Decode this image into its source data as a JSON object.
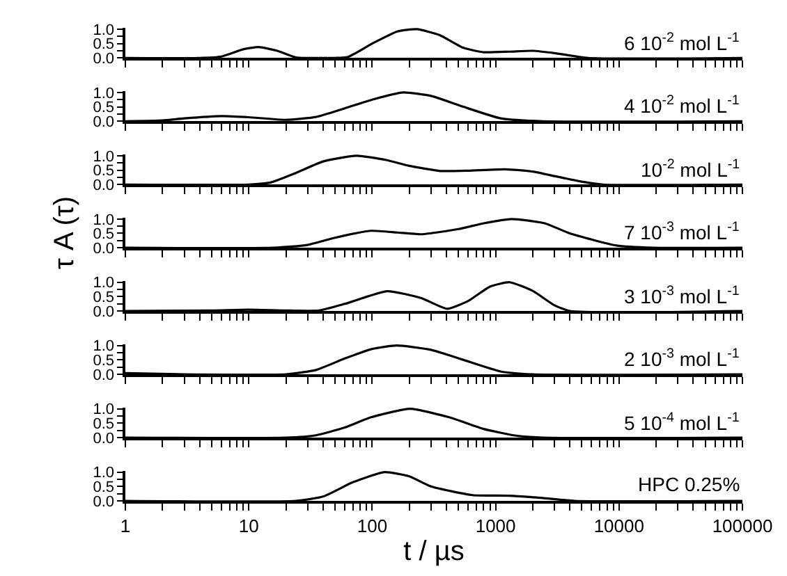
{
  "chart_data": [
    {
      "type": "line",
      "title": "6 10$^{-2}$ mol L$^{-1}$",
      "log": "x",
      "tick_labels": "y",
      "xlim": [
        1,
        100000
      ],
      "ylim": [
        0,
        1.05
      ],
      "yticks": [
        {
          "value": 0,
          "label": "0.0"
        },
        {
          "value": 0.25,
          "label": null
        },
        {
          "value": 0.5,
          "label": "0.5"
        },
        {
          "value": 0.75,
          "label": null
        },
        {
          "value": 1,
          "label": "1.0"
        }
      ],
      "xticks": [
        1,
        2,
        3,
        4,
        5,
        6,
        7,
        8,
        9,
        10,
        20,
        30,
        40,
        50,
        60,
        70,
        80,
        90,
        100,
        200,
        300,
        400,
        500,
        600,
        700,
        800,
        900,
        1000,
        2000,
        3000,
        4000,
        5000,
        6000,
        7000,
        8000,
        9000,
        10000,
        20000,
        30000,
        40000,
        50000,
        60000,
        70000,
        80000,
        90000,
        100000
      ],
      "series": [
        {
          "color": "#000000",
          "x": [
            1,
            4,
            6,
            9,
            12,
            17,
            24,
            40,
            63,
            100,
            160,
            230,
            350,
            550,
            800,
            1300,
            2000,
            3000,
            5600,
            100000
          ],
          "values": [
            0,
            0,
            0.05,
            0.3,
            0.38,
            0.25,
            0.02,
            0,
            0.03,
            0.5,
            0.92,
            1.0,
            0.8,
            0.35,
            0.2,
            0.22,
            0.25,
            0.17,
            0,
            0
          ]
        }
      ]
    },
    {
      "type": "line",
      "title": "4 10$^{-2}$ mol L$^{-1}$",
      "log": "x",
      "tick_labels": "y",
      "xlim": [
        1,
        100000
      ],
      "ylim": [
        0,
        1.05
      ],
      "yticks": [
        {
          "value": 0,
          "label": "0.0"
        },
        {
          "value": 0.25,
          "label": null
        },
        {
          "value": 0.5,
          "label": "0.5"
        },
        {
          "value": 0.75,
          "label": null
        },
        {
          "value": 1,
          "label": "1.0"
        }
      ],
      "xticks": [
        1,
        2,
        3,
        4,
        5,
        6,
        7,
        8,
        9,
        10,
        20,
        30,
        40,
        50,
        60,
        70,
        80,
        90,
        100,
        200,
        300,
        400,
        500,
        600,
        700,
        800,
        900,
        1000,
        2000,
        3000,
        4000,
        5000,
        6000,
        7000,
        8000,
        9000,
        10000,
        20000,
        30000,
        40000,
        50000,
        60000,
        70000,
        80000,
        90000,
        100000
      ],
      "series": [
        {
          "color": "#000000",
          "x": [
            1,
            2,
            3,
            6,
            10,
            20,
            35,
            60,
            100,
            178,
            300,
            550,
            1100,
            2400,
            100000
          ],
          "values": [
            0,
            0.03,
            0.1,
            0.18,
            0.14,
            0.05,
            0.15,
            0.45,
            0.75,
            1.0,
            0.88,
            0.5,
            0.1,
            0,
            0
          ]
        }
      ]
    },
    {
      "type": "line",
      "title": "10$^{-2}$ mol L$^{-1}$",
      "log": "x",
      "tick_labels": "y",
      "xlim": [
        1,
        100000
      ],
      "ylim": [
        0,
        1.05
      ],
      "yticks": [
        {
          "value": 0,
          "label": "0.0"
        },
        {
          "value": 0.25,
          "label": null
        },
        {
          "value": 0.5,
          "label": "0.5"
        },
        {
          "value": 0.75,
          "label": null
        },
        {
          "value": 1,
          "label": "1.0"
        }
      ],
      "xticks": [
        1,
        2,
        3,
        4,
        5,
        6,
        7,
        8,
        9,
        10,
        20,
        30,
        40,
        50,
        60,
        70,
        80,
        90,
        100,
        200,
        300,
        400,
        500,
        600,
        700,
        800,
        900,
        1000,
        2000,
        3000,
        4000,
        5000,
        6000,
        7000,
        8000,
        9000,
        10000,
        20000,
        30000,
        40000,
        50000,
        60000,
        70000,
        80000,
        90000,
        100000
      ],
      "series": [
        {
          "color": "#000000",
          "x": [
            1,
            10,
            15,
            24,
            40,
            75,
            130,
            200,
            355,
            600,
            1200,
            2000,
            3100,
            5000,
            7400,
            100000
          ],
          "values": [
            0,
            0,
            0.07,
            0.4,
            0.8,
            1.0,
            0.85,
            0.65,
            0.47,
            0.48,
            0.53,
            0.45,
            0.28,
            0.1,
            0,
            0
          ]
        }
      ]
    },
    {
      "type": "line",
      "title": "7 10$^{-3}$ mol L$^{-1}$",
      "ylabel": "τ A (τ)",
      "log": "x",
      "tick_labels": "y",
      "xlim": [
        1,
        100000
      ],
      "ylim": [
        0,
        1.05
      ],
      "yticks": [
        {
          "value": 0,
          "label": "0.0"
        },
        {
          "value": 0.25,
          "label": null
        },
        {
          "value": 0.5,
          "label": "0.5"
        },
        {
          "value": 0.75,
          "label": null
        },
        {
          "value": 1,
          "label": "1.0"
        }
      ],
      "xticks": [
        1,
        2,
        3,
        4,
        5,
        6,
        7,
        8,
        9,
        10,
        20,
        30,
        40,
        50,
        60,
        70,
        80,
        90,
        100,
        200,
        300,
        400,
        500,
        600,
        700,
        800,
        900,
        1000,
        2000,
        3000,
        4000,
        5000,
        6000,
        7000,
        8000,
        9000,
        10000,
        20000,
        30000,
        40000,
        50000,
        60000,
        70000,
        80000,
        90000,
        100000
      ],
      "series": [
        {
          "color": "#000000",
          "x": [
            1,
            16,
            30,
            50,
            97,
            160,
            250,
            500,
            800,
            1350,
            2500,
            4000,
            9500,
            19000,
            100000
          ],
          "values": [
            0,
            0,
            0.1,
            0.35,
            0.59,
            0.53,
            0.47,
            0.65,
            0.85,
            1.0,
            0.85,
            0.5,
            0.08,
            0,
            0
          ]
        }
      ]
    },
    {
      "type": "line",
      "title": "3 10$^{-3}$ mol L$^{-1}$",
      "log": "x",
      "tick_labels": "y",
      "xlim": [
        1,
        100000
      ],
      "ylim": [
        0,
        1.05
      ],
      "yticks": [
        {
          "value": 0,
          "label": "0.0"
        },
        {
          "value": 0.25,
          "label": null
        },
        {
          "value": 0.5,
          "label": "0.5"
        },
        {
          "value": 0.75,
          "label": null
        },
        {
          "value": 1,
          "label": "1.0"
        }
      ],
      "xticks": [
        1,
        2,
        3,
        4,
        5,
        6,
        7,
        8,
        9,
        10,
        20,
        30,
        40,
        50,
        60,
        70,
        80,
        90,
        100,
        200,
        300,
        400,
        500,
        600,
        700,
        800,
        900,
        1000,
        2000,
        3000,
        4000,
        5000,
        6000,
        7000,
        8000,
        9000,
        10000,
        20000,
        30000,
        40000,
        50000,
        60000,
        70000,
        80000,
        90000,
        100000
      ],
      "series": [
        {
          "color": "#000000",
          "x": [
            1,
            5,
            10,
            20,
            37,
            60,
            132,
            250,
            405,
            600,
            900,
            1300,
            2000,
            3000,
            4000,
            100000
          ],
          "values": [
            0,
            0.02,
            0.05,
            0.02,
            0.02,
            0.25,
            0.69,
            0.45,
            0.08,
            0.35,
            0.85,
            1.0,
            0.7,
            0.2,
            0,
            0
          ]
        }
      ]
    },
    {
      "type": "line",
      "title": "2 10$^{-3}$ mol L$^{-1}$",
      "log": "x",
      "tick_labels": "y",
      "xlim": [
        1,
        100000
      ],
      "ylim": [
        0,
        1.05
      ],
      "yticks": [
        {
          "value": 0,
          "label": "0.0"
        },
        {
          "value": 0.25,
          "label": null
        },
        {
          "value": 0.5,
          "label": "0.5"
        },
        {
          "value": 0.75,
          "label": null
        },
        {
          "value": 1,
          "label": "1.0"
        }
      ],
      "xticks": [
        1,
        2,
        3,
        4,
        5,
        6,
        7,
        8,
        9,
        10,
        20,
        30,
        40,
        50,
        60,
        70,
        80,
        90,
        100,
        200,
        300,
        400,
        500,
        600,
        700,
        800,
        900,
        1000,
        2000,
        3000,
        4000,
        5000,
        6000,
        7000,
        8000,
        9000,
        10000,
        20000,
        30000,
        40000,
        50000,
        60000,
        70000,
        80000,
        90000,
        100000
      ],
      "series": [
        {
          "color": "#000000",
          "x": [
            1,
            3,
            20,
            35,
            60,
            100,
            158,
            300,
            550,
            1100,
            2000,
            100000
          ],
          "values": [
            0.04,
            0,
            0,
            0.15,
            0.55,
            0.88,
            1.0,
            0.85,
            0.5,
            0.1,
            0,
            0
          ]
        }
      ]
    },
    {
      "type": "line",
      "title": "5 10$^{-4}$ mol L$^{-1}$",
      "log": "x",
      "tick_labels": "y",
      "xlim": [
        1,
        100000
      ],
      "ylim": [
        0,
        1.05
      ],
      "yticks": [
        {
          "value": 0,
          "label": "0.0"
        },
        {
          "value": 0.25,
          "label": null
        },
        {
          "value": 0.5,
          "label": "0.5"
        },
        {
          "value": 0.75,
          "label": null
        },
        {
          "value": 1,
          "label": "1.0"
        }
      ],
      "xticks": [
        1,
        2,
        3,
        4,
        5,
        6,
        7,
        8,
        9,
        10,
        20,
        30,
        40,
        50,
        60,
        70,
        80,
        90,
        100,
        200,
        300,
        400,
        500,
        600,
        700,
        800,
        900,
        1000,
        2000,
        3000,
        4000,
        5000,
        6000,
        7000,
        8000,
        9000,
        10000,
        20000,
        30000,
        40000,
        50000,
        60000,
        70000,
        80000,
        90000,
        100000
      ],
      "series": [
        {
          "color": "#000000",
          "x": [
            1,
            20,
            35,
            60,
            97,
            203,
            425,
            800,
            1400,
            2400,
            100000
          ],
          "values": [
            0,
            0,
            0.08,
            0.35,
            0.7,
            1.0,
            0.7,
            0.3,
            0.08,
            0,
            0
          ]
        }
      ]
    },
    {
      "type": "line",
      "title": "HPC 0.25%",
      "xlabel": "t / µs",
      "log": "x",
      "xlim": [
        1,
        100000
      ],
      "ylim": [
        0,
        1.05
      ],
      "yticks": [
        {
          "value": 0,
          "label": "0.0"
        },
        {
          "value": 0.25,
          "label": null
        },
        {
          "value": 0.5,
          "label": "0.5"
        },
        {
          "value": 0.75,
          "label": null
        },
        {
          "value": 1,
          "label": "1.0"
        }
      ],
      "xticks": [
        1,
        {
          "value": 2,
          "label": null
        },
        {
          "value": 3,
          "label": null
        },
        {
          "value": 4,
          "label": null
        },
        {
          "value": 5,
          "label": null
        },
        {
          "value": 6,
          "label": null
        },
        {
          "value": 7,
          "label": null
        },
        {
          "value": 8,
          "label": null
        },
        {
          "value": 9,
          "label": null
        },
        10,
        {
          "value": 20,
          "label": null
        },
        {
          "value": 30,
          "label": null
        },
        {
          "value": 40,
          "label": null
        },
        {
          "value": 50,
          "label": null
        },
        {
          "value": 60,
          "label": null
        },
        {
          "value": 70,
          "label": null
        },
        {
          "value": 80,
          "label": null
        },
        {
          "value": 90,
          "label": null
        },
        100,
        {
          "value": 200,
          "label": null
        },
        {
          "value": 300,
          "label": null
        },
        {
          "value": 400,
          "label": null
        },
        {
          "value": 500,
          "label": null
        },
        {
          "value": 600,
          "label": null
        },
        {
          "value": 700,
          "label": null
        },
        {
          "value": 800,
          "label": null
        },
        {
          "value": 900,
          "label": null
        },
        1000,
        {
          "value": 2000,
          "label": null
        },
        {
          "value": 3000,
          "label": null
        },
        {
          "value": 4000,
          "label": null
        },
        {
          "value": 5000,
          "label": null
        },
        {
          "value": 6000,
          "label": null
        },
        {
          "value": 7000,
          "label": null
        },
        {
          "value": 8000,
          "label": null
        },
        {
          "value": 9000,
          "label": null
        },
        10000,
        {
          "value": 20000,
          "label": null
        },
        {
          "value": 30000,
          "label": null
        },
        {
          "value": 40000,
          "label": null
        },
        {
          "value": 50000,
          "label": null
        },
        {
          "value": 60000,
          "label": null
        },
        {
          "value": 70000,
          "label": null
        },
        {
          "value": 80000,
          "label": null
        },
        {
          "value": 90000,
          "label": null
        },
        100000
      ],
      "series": [
        {
          "color": "#000000",
          "x": [
            1,
            24,
            40,
            70,
            126,
            200,
            300,
            650,
            1300,
            2400,
            4400,
            100000
          ],
          "values": [
            0,
            0,
            0.15,
            0.65,
            1.0,
            0.85,
            0.5,
            0.2,
            0.18,
            0.1,
            0,
            0
          ]
        }
      ]
    }
  ]
}
